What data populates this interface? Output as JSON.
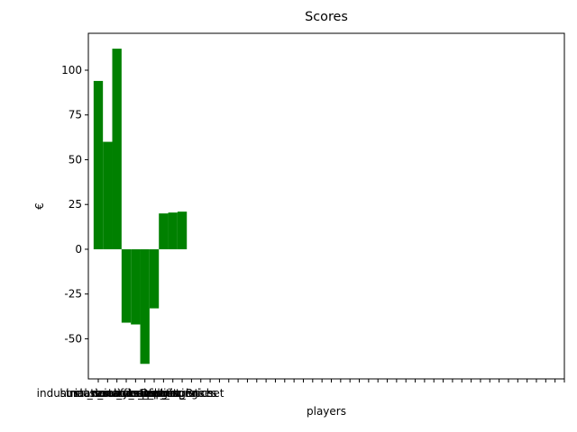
{
  "chart_data": {
    "type": "bar",
    "title": "Scores",
    "x_label": "players",
    "y_label": "€",
    "categories": [
      "industrial_construction",
      "human_resources",
      "industrial_cleaning",
      "stationery_supplies",
      "services_admin",
      "restaurant_catering",
      "office_furniture",
      "transport_logistics",
      "travel_expenses",
      "Dupont_Brichet",
      null,
      null,
      null,
      null,
      null,
      null,
      null,
      null,
      null,
      null,
      null,
      null,
      null,
      null,
      null,
      null,
      null,
      null,
      null,
      null,
      null,
      null,
      null,
      null,
      null,
      null,
      null,
      null,
      null,
      null,
      null,
      null,
      null,
      null,
      null,
      null,
      null,
      null,
      null,
      null,
      null
    ],
    "values": [
      94,
      60,
      112,
      -41,
      -42,
      -64,
      -33,
      20,
      20.5,
      21,
      null,
      null,
      null,
      null,
      null,
      null,
      null,
      null,
      null,
      null,
      null,
      null,
      null,
      null,
      null,
      null,
      null,
      null,
      null,
      null,
      null,
      null,
      null,
      null,
      null,
      null,
      null,
      null,
      null,
      null,
      null,
      null,
      null,
      null,
      null,
      null,
      null,
      null,
      null,
      null,
      null
    ],
    "color": "#008000",
    "ylim": [
      -72.4,
      120.6
    ],
    "yticks": [
      -50,
      -25,
      0,
      25,
      50,
      75,
      100
    ]
  }
}
